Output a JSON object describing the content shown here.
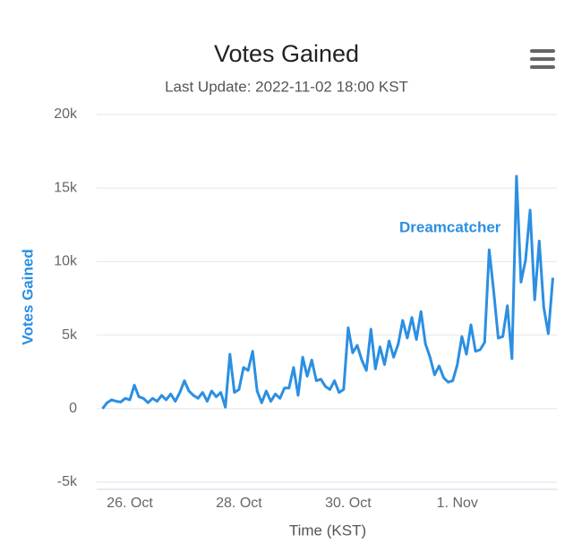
{
  "chart_data": {
    "type": "line",
    "title": "Votes Gained",
    "subtitle": "Last Update: 2022-11-02 18:00 KST",
    "x_label": "Time (KST)",
    "y_label": "Votes Gained",
    "categories": [
      null,
      null,
      null,
      null,
      null,
      null,
      "26. Oct",
      null,
      null,
      null,
      null,
      null,
      null,
      null,
      null,
      null,
      null,
      null,
      null,
      null,
      null,
      null,
      null,
      null,
      null,
      null,
      null,
      null,
      null,
      null,
      "28. Oct",
      null,
      null,
      null,
      null,
      null,
      null,
      null,
      null,
      null,
      null,
      null,
      null,
      null,
      null,
      null,
      null,
      null,
      null,
      null,
      null,
      null,
      null,
      null,
      "30. Oct",
      null,
      null,
      null,
      null,
      null,
      null,
      null,
      null,
      null,
      null,
      null,
      null,
      null,
      null,
      null,
      null,
      null,
      null,
      null,
      null,
      null,
      null,
      null,
      "1. Nov",
      null,
      null,
      null,
      null,
      null,
      null,
      null,
      null,
      null,
      null,
      null,
      null,
      null,
      null,
      null,
      null,
      null,
      null,
      null,
      null,
      null
    ],
    "series": [
      {
        "name": "Dreamcatcher",
        "color": "#2b8fe2",
        "values": [
          0,
          400,
          600,
          500,
          450,
          700,
          600,
          1600,
          800,
          700,
          400,
          700,
          500,
          900,
          600,
          1000,
          500,
          1100,
          1900,
          1200,
          900,
          700,
          1100,
          500,
          1200,
          800,
          1100,
          100,
          3700,
          1100,
          1300,
          2800,
          2600,
          3900,
          1200,
          400,
          1200,
          500,
          1000,
          700,
          1400,
          1400,
          2800,
          900,
          3500,
          2200,
          3300,
          1900,
          2000,
          1500,
          1300,
          1900,
          1100,
          1300,
          5500,
          3800,
          4300,
          3300,
          2600,
          5400,
          2700,
          4200,
          3000,
          4600,
          3500,
          4400,
          6000,
          4800,
          6200,
          4700,
          6600,
          4400,
          3500,
          2300,
          2900,
          2100,
          1800,
          1900,
          3000,
          4900,
          3700,
          5700,
          3900,
          4000,
          4500,
          10800,
          8000,
          4800,
          4900,
          7000,
          3400,
          15800,
          8600,
          10100,
          13500,
          7400,
          11400,
          6900,
          5100,
          8900
        ]
      }
    ],
    "ylim": [
      -5000,
      20000
    ],
    "yticks": [
      {
        "value": -5000,
        "label": "-5k"
      },
      0,
      {
        "value": 5000,
        "label": "5k"
      },
      {
        "value": 10000,
        "label": "10k"
      },
      {
        "value": 15000,
        "label": "15k"
      },
      {
        "value": 20000,
        "label": "20k"
      }
    ],
    "grid": true
  }
}
